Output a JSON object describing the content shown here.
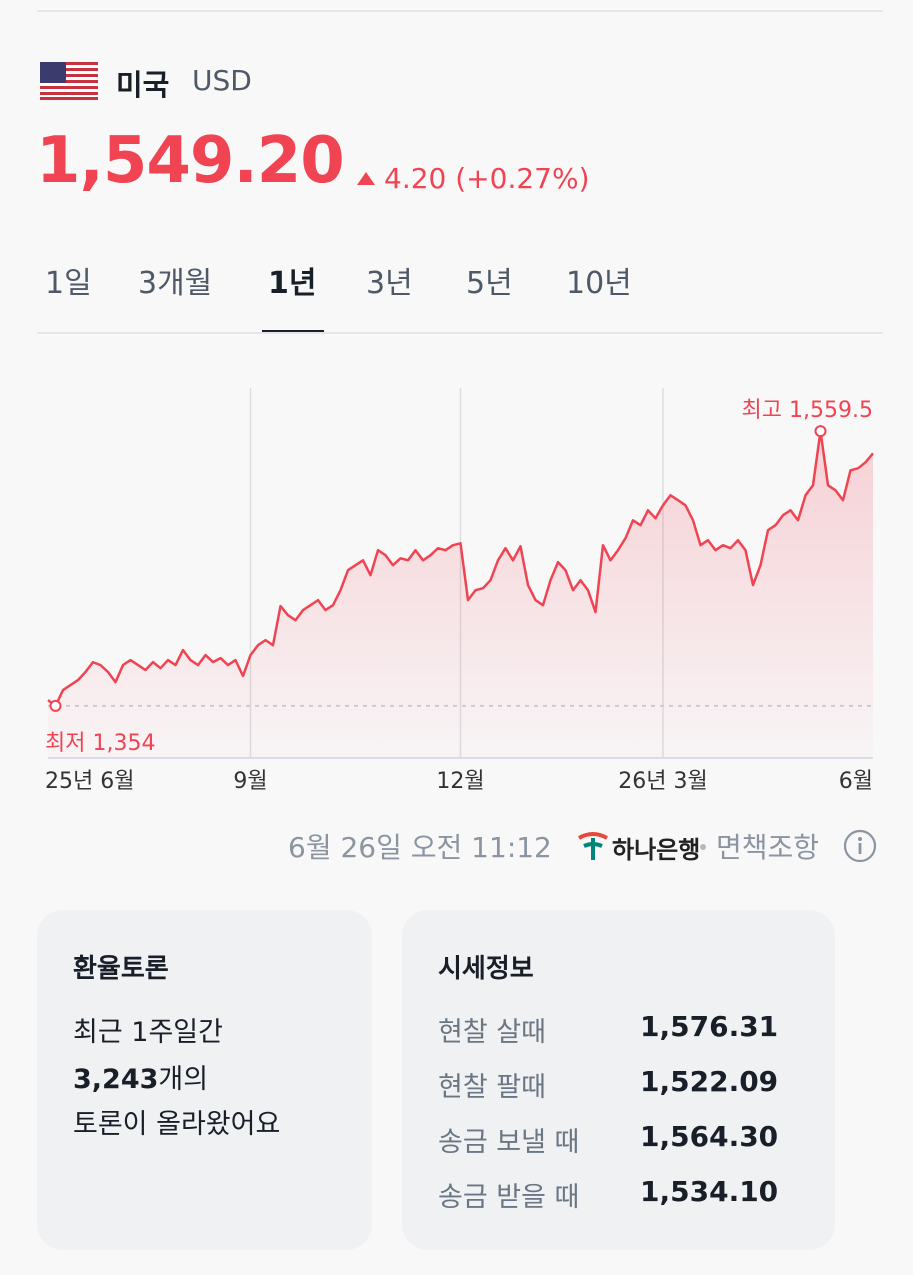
{
  "header": {
    "country": "미국",
    "currency": "USD",
    "price": "1,549.20",
    "change": "4.20 (+0.27%)"
  },
  "tabs": [
    {
      "label": "1일",
      "selected": false
    },
    {
      "label": "3개월",
      "selected": false
    },
    {
      "label": "1년",
      "selected": true
    },
    {
      "label": "3년",
      "selected": false
    },
    {
      "label": "5년",
      "selected": false
    },
    {
      "label": "10년",
      "selected": false
    }
  ],
  "chart_data": {
    "type": "line",
    "color": "#f04452",
    "values": [
      1358.3,
      1354,
      1365.8,
      1369.5,
      1373.3,
      1379.3,
      1386.7,
      1384.5,
      1379.3,
      1371.8,
      1384.5,
      1388.2,
      1384.5,
      1380.8,
      1386.7,
      1382.2,
      1388.2,
      1384.5,
      1395.7,
      1388.2,
      1384.5,
      1392.0,
      1386.7,
      1389.7,
      1384.5,
      1388.2,
      1376.3,
      1392.0,
      1399.4,
      1403.2,
      1399.4,
      1428.6,
      1421.8,
      1418.1,
      1425.6,
      1429.3,
      1433.1,
      1425.6,
      1429.3,
      1440.5,
      1455.5,
      1459.2,
      1462.9,
      1451.7,
      1470.4,
      1466.7,
      1459.2,
      1464.4,
      1462.9,
      1470.4,
      1462.9,
      1466.7,
      1471.9,
      1470.4,
      1474.2,
      1475.6,
      1433.1,
      1440.5,
      1442.0,
      1448.0,
      1462.9,
      1471.9,
      1462.9,
      1473.4,
      1444.3,
      1433.1,
      1429.3,
      1448.0,
      1461.5,
      1455.5,
      1440.5,
      1448.0,
      1440.5,
      1424.1,
      1474.2,
      1462.9,
      1470.4,
      1479.4,
      1492.8,
      1489.1,
      1500.3,
      1494.3,
      1504.0,
      1511.5,
      1507.8,
      1504.0,
      1492.8,
      1474.2,
      1477.9,
      1470.4,
      1474.2,
      1471.9,
      1477.9,
      1470.4,
      1444.3,
      1459.2,
      1485.4,
      1489.1,
      1496.6,
      1500.3,
      1492.8,
      1511.5,
      1519.0,
      1559.5,
      1519.0,
      1515.2,
      1507.8,
      1530.2,
      1531.7,
      1536.2,
      1542.9
    ],
    "xlim": [
      0,
      110
    ],
    "ylim": [
      1315,
      1594
    ],
    "xticks": [
      {
        "value": 0,
        "label": "25년 6월"
      },
      {
        "value": 27,
        "label": "9월"
      },
      {
        "value": 55,
        "label": "12월"
      },
      {
        "value": 82,
        "label": "26년 3월"
      },
      {
        "value": 110,
        "label": "6월"
      }
    ],
    "max_label": "최고 1,559.5",
    "min_label": "최저 1,354"
  },
  "footer": {
    "timestamp": "6월 26일 오전 11:12",
    "bank": "하나은행",
    "disclaimer": "면책조항"
  },
  "discussion": {
    "title": "환율토론",
    "line1": "최근 1주일간",
    "count": "3,243",
    "count_suffix": "개의",
    "line3": "토론이 올라왔어요"
  },
  "rates": {
    "title": "시세정보",
    "rows": [
      [
        "현찰 살때",
        "1,576.31"
      ],
      [
        "현찰 팔때",
        "1,522.09"
      ],
      [
        "송금 보낼 때",
        "1,564.30"
      ],
      [
        "송금 받을 때",
        "1,534.10"
      ]
    ]
  }
}
